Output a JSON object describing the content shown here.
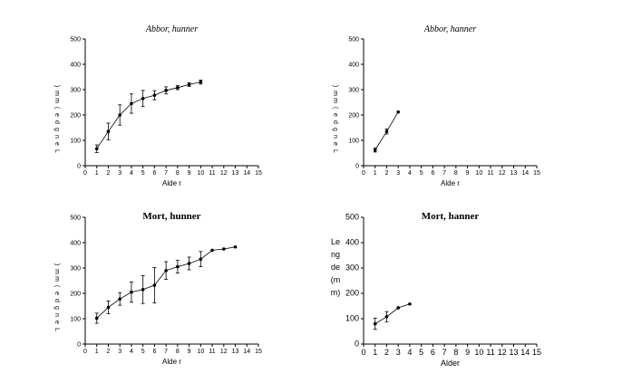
{
  "chart_data": [
    {
      "type": "line",
      "title": "Abbor, hunner",
      "title_style": "italic",
      "xlabel": "Alde r",
      "ylabel_letters": [
        ")",
        "m",
        "m",
        "(",
        "e",
        "d",
        "g",
        "n",
        "e",
        "L"
      ],
      "xlim": [
        0,
        15
      ],
      "ylim": [
        0,
        500
      ],
      "xticks": [
        "0",
        "1",
        "2",
        "3",
        "4",
        "5",
        "6",
        "7",
        "8",
        "9",
        "10",
        "11",
        "12",
        "13",
        "14",
        "15"
      ],
      "yticks": [
        "0",
        "100",
        "200",
        "300",
        "400",
        "500"
      ],
      "series": [
        {
          "x": [
            1,
            2,
            3,
            4,
            5,
            6,
            7,
            8,
            9,
            10
          ],
          "y": [
            67,
            135,
            200,
            245,
            265,
            278,
            297,
            308,
            320,
            330
          ],
          "err": [
            15,
            33,
            40,
            38,
            32,
            18,
            14,
            8,
            7,
            8
          ]
        }
      ]
    },
    {
      "type": "line",
      "title": "Abbor, hanner",
      "title_style": "italic",
      "xlabel": "Alde r",
      "ylabel_letters": [
        ")",
        "m",
        "m",
        "(",
        "e",
        "d",
        "g",
        "n",
        "e",
        "L"
      ],
      "xlim": [
        0,
        15
      ],
      "ylim": [
        0,
        500
      ],
      "xticks": [
        "0",
        "1",
        "2",
        "3",
        "4",
        "5",
        "6",
        "7",
        "8",
        "9",
        "10",
        "11",
        "12",
        "13",
        "14",
        "15"
      ],
      "yticks": [
        "0",
        "100",
        "200",
        "300",
        "400",
        "500"
      ],
      "series": [
        {
          "x": [
            1,
            2,
            3
          ],
          "y": [
            62,
            135,
            212
          ],
          "err": [
            8,
            10,
            0
          ]
        }
      ]
    },
    {
      "type": "line",
      "title": "Mort, hunner",
      "title_style": "bold",
      "xlabel": "Alde r",
      "ylabel_letters": [
        ")",
        "m",
        "m",
        "(",
        "e",
        "d",
        "g",
        "n",
        "e",
        "L"
      ],
      "xlim": [
        0,
        15
      ],
      "ylim": [
        0,
        500
      ],
      "xticks": [
        "0",
        "1",
        "2",
        "3",
        "4",
        "5",
        "6",
        "7",
        "8",
        "9",
        "10",
        "11",
        "12",
        "13",
        "14",
        "15"
      ],
      "yticks": [
        "0",
        "100",
        "200",
        "300",
        "400",
        "500"
      ],
      "series": [
        {
          "x": [
            1,
            2,
            3,
            4,
            5,
            6,
            7,
            8,
            9,
            10,
            11,
            12,
            13
          ],
          "y": [
            102,
            145,
            178,
            205,
            215,
            232,
            290,
            305,
            318,
            335,
            370,
            375,
            383
          ],
          "err": [
            20,
            25,
            25,
            40,
            55,
            70,
            35,
            25,
            25,
            30,
            0,
            0,
            0
          ]
        }
      ]
    },
    {
      "type": "line",
      "title": "Mort, hanner",
      "title_style": "bold",
      "xlabel": "Alder",
      "ylabel_lines": [
        "Le",
        "ng",
        "de",
        "(m",
        "m)"
      ],
      "xlim": [
        0,
        15
      ],
      "ylim": [
        0,
        500
      ],
      "xticks": [
        "0",
        "1",
        "2",
        "3",
        "4",
        "5",
        "6",
        "7",
        "8",
        "9",
        "10",
        "11",
        "12",
        "13",
        "14",
        "15"
      ],
      "yticks": [
        "0",
        "100",
        "200",
        "300",
        "400",
        "500"
      ],
      "series": [
        {
          "x": [
            1,
            2,
            3,
            4
          ],
          "y": [
            80,
            108,
            143,
            158
          ],
          "err": [
            22,
            20,
            0,
            0
          ]
        }
      ]
    }
  ]
}
